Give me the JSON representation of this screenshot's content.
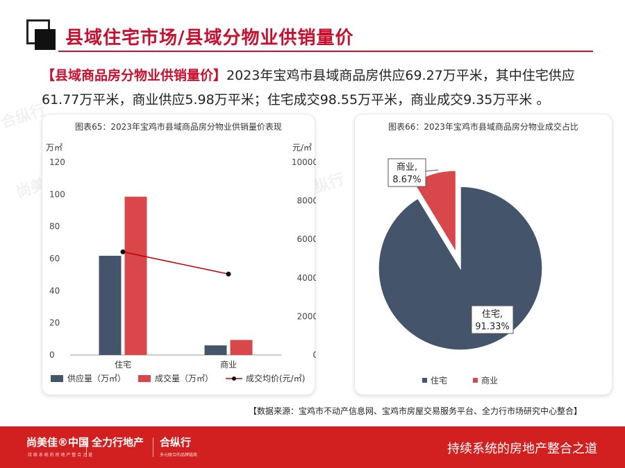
{
  "header": {
    "title": "县域住宅市场/县域分物业供销量价"
  },
  "summary": {
    "highlight": "【县域商品房分物业供销量价】",
    "text": "2023年宝鸡市县域商品房供应69.27万平米，其中住宅供应61.77万平米，商业供应5.98万平米；住宅成交98.55万平米，商业成交9.35万平米 。"
  },
  "colors": {
    "navy": "#44546a",
    "red": "#d9474a",
    "brand": "#d21f1f",
    "line": "#c00000"
  },
  "chart_data": [
    {
      "type": "bar",
      "title": "图表65：2023年宝鸡市县域商品房分物业供销量价表现",
      "categories": [
        "住宅",
        "商业"
      ],
      "y_left_unit": "万㎡",
      "y_right_unit": "元/㎡",
      "y_left_ticks": [
        "0",
        "20",
        "40",
        "60",
        "80",
        "100",
        "120"
      ],
      "y_right_ticks": [
        "0",
        "2000",
        "4000",
        "6000",
        "8000",
        "10000"
      ],
      "ylim_left": [
        0,
        120
      ],
      "ylim_right": [
        0,
        10000
      ],
      "series": [
        {
          "name": "供应量（万㎡）",
          "axis": "left",
          "type": "bar",
          "values": [
            61.77,
            5.98
          ]
        },
        {
          "name": "成交量（万㎡）",
          "axis": "left",
          "type": "bar",
          "values": [
            98.55,
            9.35
          ]
        },
        {
          "name": "成交均价(元/㎡)",
          "axis": "right",
          "type": "line",
          "values": [
            5350,
            4200
          ]
        }
      ],
      "legend_position": "bottom"
    },
    {
      "type": "pie",
      "title": "图表66：2023年宝鸡市县域商品房分物业成交占比",
      "slices": [
        {
          "name": "住宅",
          "value": 91.33,
          "label_name": "住宅,",
          "label_pct": "91.33%"
        },
        {
          "name": "商业",
          "value": 8.67,
          "label_name": "商业,",
          "label_pct": "8.67%"
        }
      ],
      "legend_position": "bottom"
    }
  ],
  "source": "【数据来源：宝鸡市不动产信息网、宝鸡市房屋交易服务平台、全力行市场研究中心整合】",
  "footer": {
    "brand1": "尚美佳®中国",
    "brand1_sub": "持 续 系 统 的 房 地 产 整 合 之 道",
    "brand2": "全力行地产",
    "brand3": "合纵行",
    "brand3_sub": "多元联合的品牌链商",
    "slogan": "持续系统的房地产整合之道"
  },
  "watermarks": [
    "尚美佳®中国",
    "全力行地产",
    "合纵行"
  ]
}
